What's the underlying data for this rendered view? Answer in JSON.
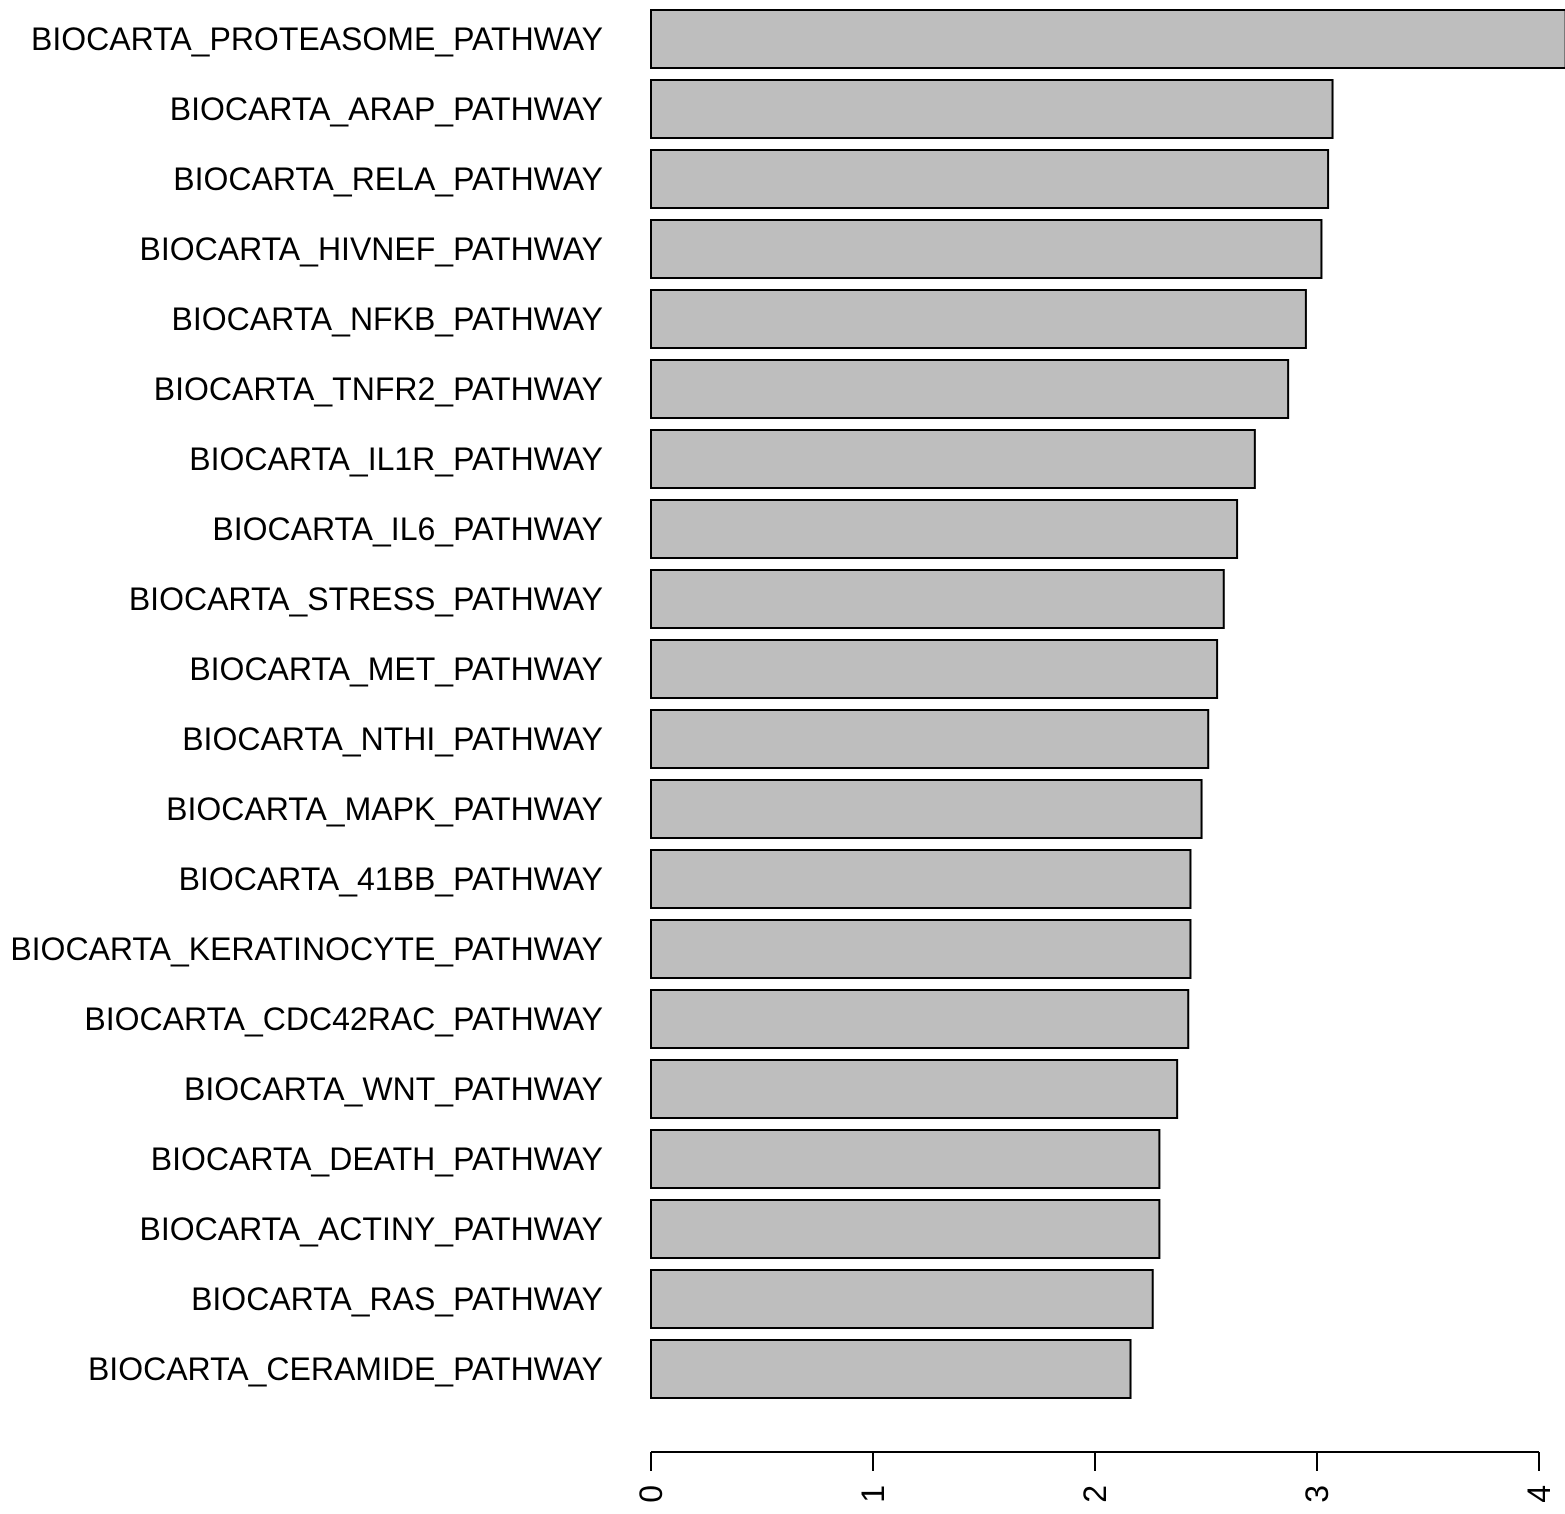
{
  "chart_data": {
    "type": "bar",
    "orientation": "horizontal",
    "categories": [
      "BIOCARTA_PROTEASOME_PATHWAY",
      "BIOCARTA_ARAP_PATHWAY",
      "BIOCARTA_RELA_PATHWAY",
      "BIOCARTA_HIVNEF_PATHWAY",
      "BIOCARTA_NFKB_PATHWAY",
      "BIOCARTA_TNFR2_PATHWAY",
      "BIOCARTA_IL1R_PATHWAY",
      "BIOCARTA_IL6_PATHWAY",
      "BIOCARTA_STRESS_PATHWAY",
      "BIOCARTA_MET_PATHWAY",
      "BIOCARTA_NTHI_PATHWAY",
      "BIOCARTA_MAPK_PATHWAY",
      "BIOCARTA_41BB_PATHWAY",
      "BIOCARTA_KERATINOCYTE_PATHWAY",
      "BIOCARTA_CDC42RAC_PATHWAY",
      "BIOCARTA_WNT_PATHWAY",
      "BIOCARTA_DEATH_PATHWAY",
      "BIOCARTA_ACTINY_PATHWAY",
      "BIOCARTA_RAS_PATHWAY",
      "BIOCARTA_CERAMIDE_PATHWAY"
    ],
    "values": [
      4.12,
      3.07,
      3.05,
      3.02,
      2.95,
      2.87,
      2.72,
      2.64,
      2.58,
      2.55,
      2.51,
      2.48,
      2.43,
      2.43,
      2.42,
      2.37,
      2.29,
      2.29,
      2.26,
      2.16
    ],
    "xlim": [
      0,
      4
    ],
    "xticks": [
      "0",
      "1",
      "2",
      "3",
      "4"
    ],
    "tick_label_rotation": "vertical",
    "title": "",
    "xlabel": "",
    "ylabel": "",
    "grid": false,
    "bar_color": "#bebebe",
    "edge_color": "#000000"
  }
}
